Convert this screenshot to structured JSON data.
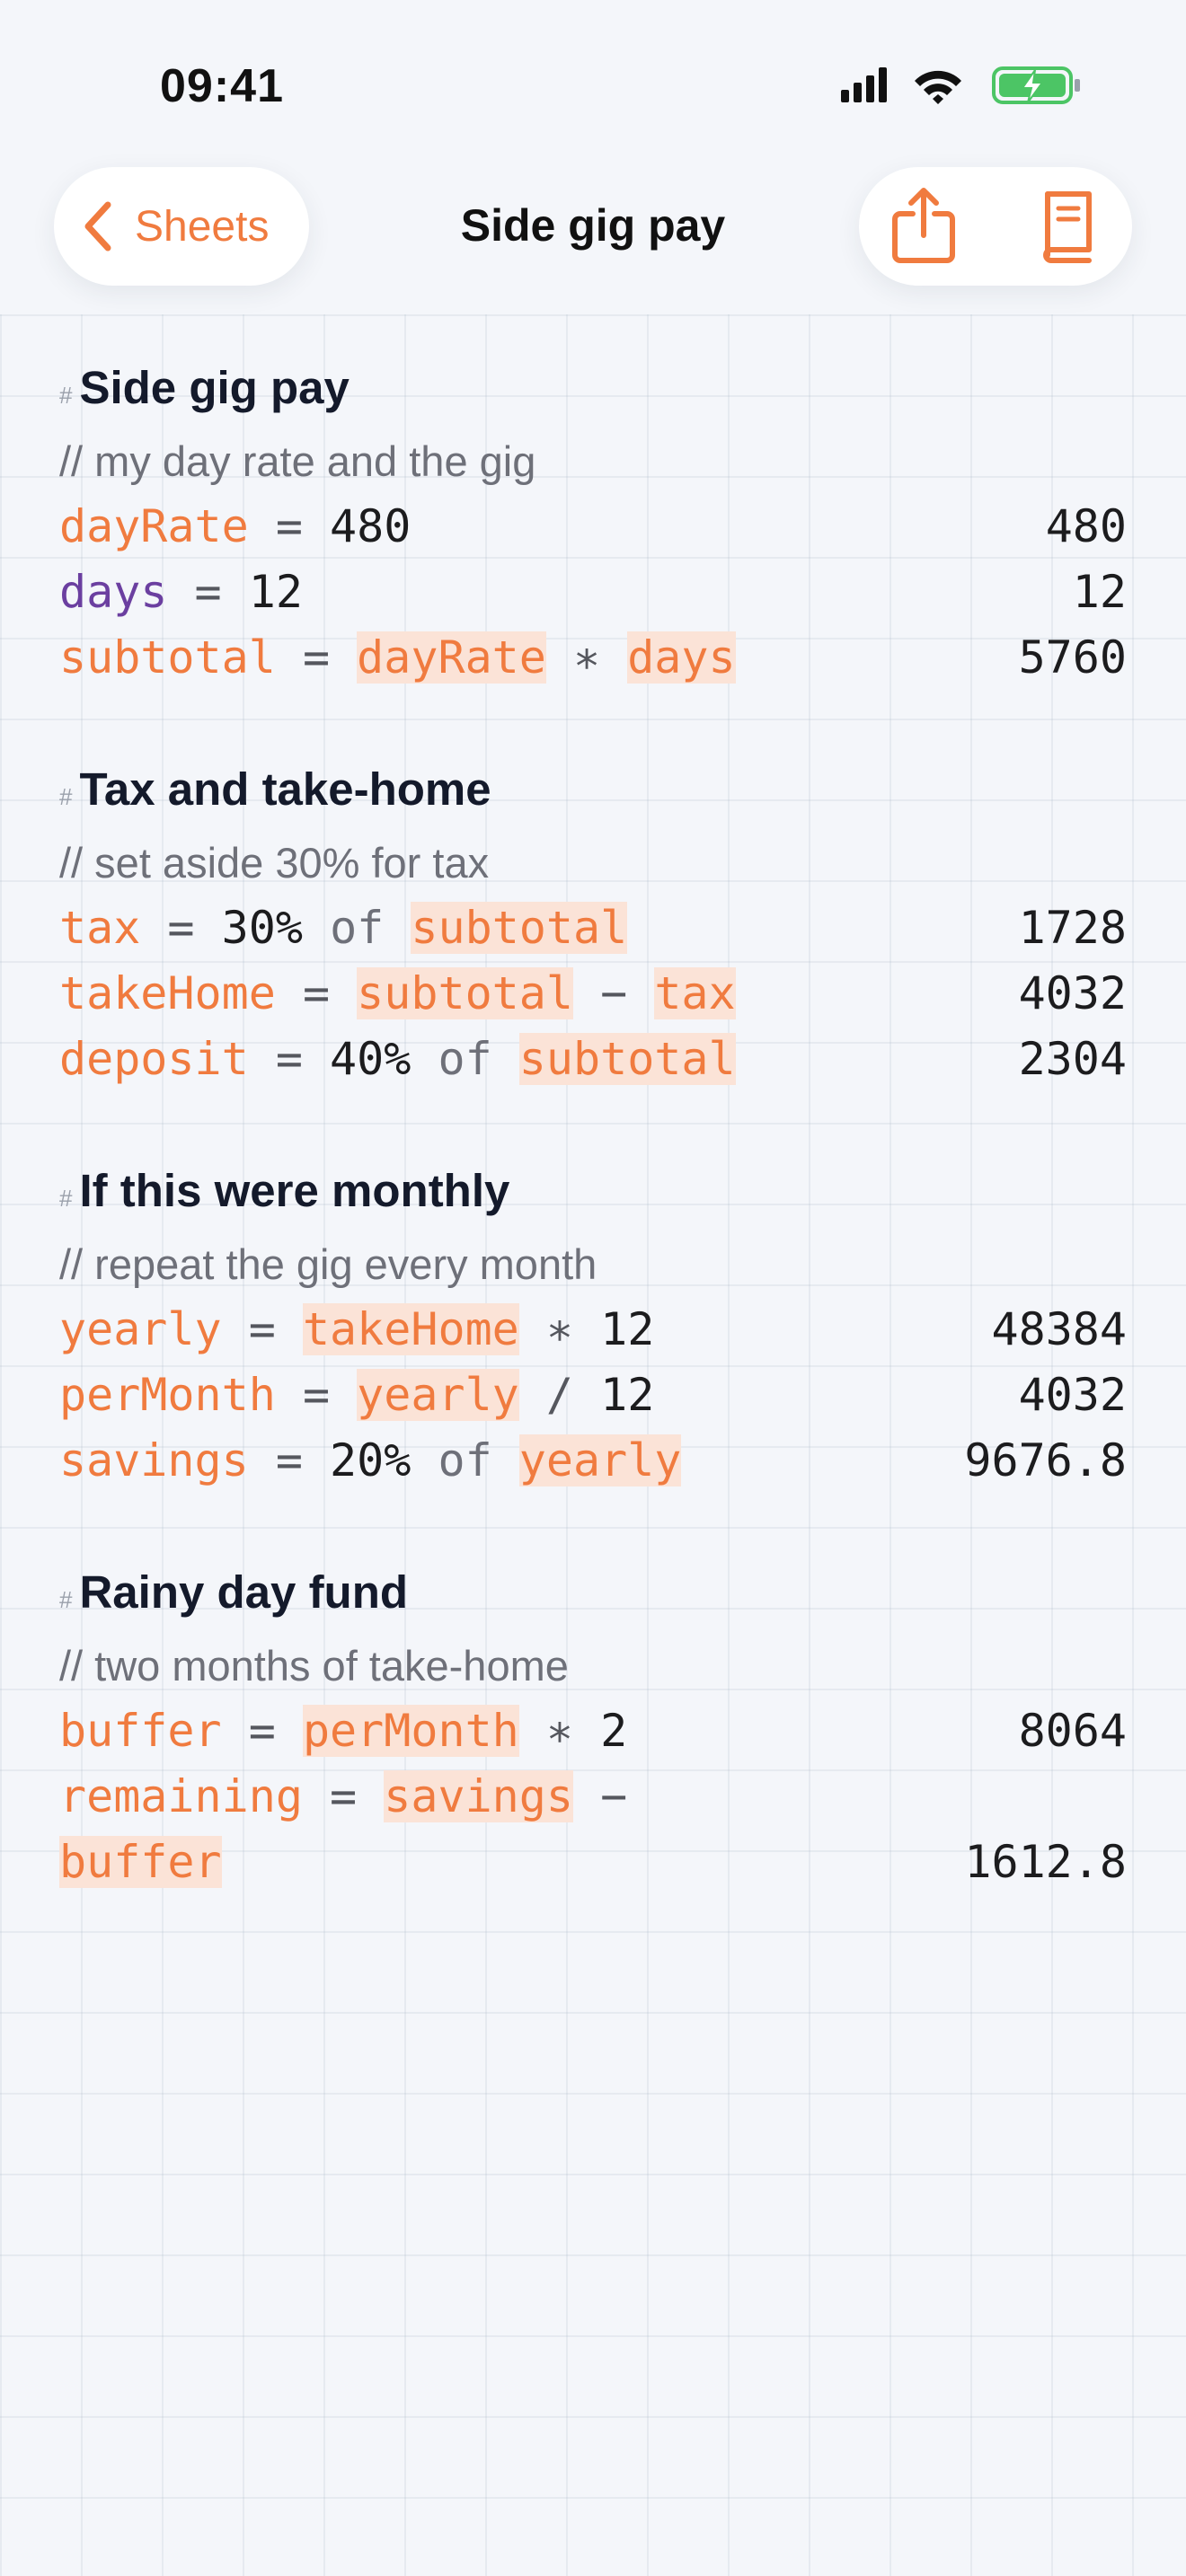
{
  "status_bar": {
    "time": "09:41"
  },
  "nav": {
    "back": "Sheets",
    "title": "Side gig pay"
  },
  "heading_marker": "#",
  "sections": [
    {
      "heading": "Side gig pay",
      "comment": "// my day rate and the gig",
      "lines": [
        {
          "tokens": [
            {
              "text": "dayRate",
              "kind": "var"
            },
            {
              "text": "=",
              "kind": "op"
            },
            {
              "text": "480",
              "kind": "num"
            }
          ],
          "result": 480
        },
        {
          "tokens": [
            {
              "text": "days",
              "kind": "keyword"
            },
            {
              "text": "=",
              "kind": "op"
            },
            {
              "text": "12",
              "kind": "num"
            }
          ],
          "result": 12
        },
        {
          "tokens": [
            {
              "text": "subtotal",
              "kind": "var"
            },
            {
              "text": "=",
              "kind": "op"
            },
            {
              "text": "dayRate",
              "kind": "ref"
            },
            {
              "text": "∗",
              "kind": "op"
            },
            {
              "text": "days",
              "kind": "ref"
            }
          ],
          "result": 5760
        }
      ]
    },
    {
      "heading": "Tax and take-home",
      "comment": "// set aside 30% for tax",
      "lines": [
        {
          "tokens": [
            {
              "text": "tax",
              "kind": "var"
            },
            {
              "text": "=",
              "kind": "op"
            },
            {
              "text": "30%",
              "kind": "num"
            },
            {
              "text": "of",
              "kind": "word"
            },
            {
              "text": "subtotal",
              "kind": "ref"
            }
          ],
          "result": 1728
        },
        {
          "tokens": [
            {
              "text": "takeHome",
              "kind": "var"
            },
            {
              "text": "=",
              "kind": "op"
            },
            {
              "text": "subtotal",
              "kind": "ref"
            },
            {
              "text": "−",
              "kind": "op"
            },
            {
              "text": "tax",
              "kind": "ref"
            }
          ],
          "result": 4032
        },
        {
          "tokens": [
            {
              "text": "deposit",
              "kind": "var"
            },
            {
              "text": "=",
              "kind": "op"
            },
            {
              "text": "40%",
              "kind": "num"
            },
            {
              "text": "of",
              "kind": "word"
            },
            {
              "text": "subtotal",
              "kind": "ref"
            }
          ],
          "result": 2304
        }
      ]
    },
    {
      "heading": "If this were monthly",
      "comment": "// repeat the gig every month",
      "lines": [
        {
          "tokens": [
            {
              "text": "yearly",
              "kind": "var"
            },
            {
              "text": "=",
              "kind": "op"
            },
            {
              "text": "takeHome",
              "kind": "ref"
            },
            {
              "text": "∗",
              "kind": "op"
            },
            {
              "text": "12",
              "kind": "num"
            }
          ],
          "result": 48384
        },
        {
          "tokens": [
            {
              "text": "perMonth",
              "kind": "var"
            },
            {
              "text": "=",
              "kind": "op"
            },
            {
              "text": "yearly",
              "kind": "ref"
            },
            {
              "text": "/",
              "kind": "op"
            },
            {
              "text": "12",
              "kind": "num"
            }
          ],
          "result": 4032
        },
        {
          "tokens": [
            {
              "text": "savings",
              "kind": "var"
            },
            {
              "text": "=",
              "kind": "op"
            },
            {
              "text": "20%",
              "kind": "num"
            },
            {
              "text": "of",
              "kind": "word"
            },
            {
              "text": "yearly",
              "kind": "ref"
            }
          ],
          "result": 9676.8
        }
      ]
    },
    {
      "heading": "Rainy day fund",
      "comment": "// two months of take-home",
      "lines": [
        {
          "tokens": [
            {
              "text": "buffer",
              "kind": "var"
            },
            {
              "text": "=",
              "kind": "op"
            },
            {
              "text": "perMonth",
              "kind": "ref"
            },
            {
              "text": "∗",
              "kind": "op"
            },
            {
              "text": "2",
              "kind": "num"
            }
          ],
          "result": 8064
        },
        {
          "tokens": [
            {
              "text": "remaining",
              "kind": "var"
            },
            {
              "text": "=",
              "kind": "op"
            },
            {
              "text": "savings",
              "kind": "ref"
            },
            {
              "text": "−",
              "kind": "op"
            },
            {
              "text": "buffer",
              "kind": "ref"
            }
          ],
          "result": 1612.8
        }
      ]
    }
  ]
}
